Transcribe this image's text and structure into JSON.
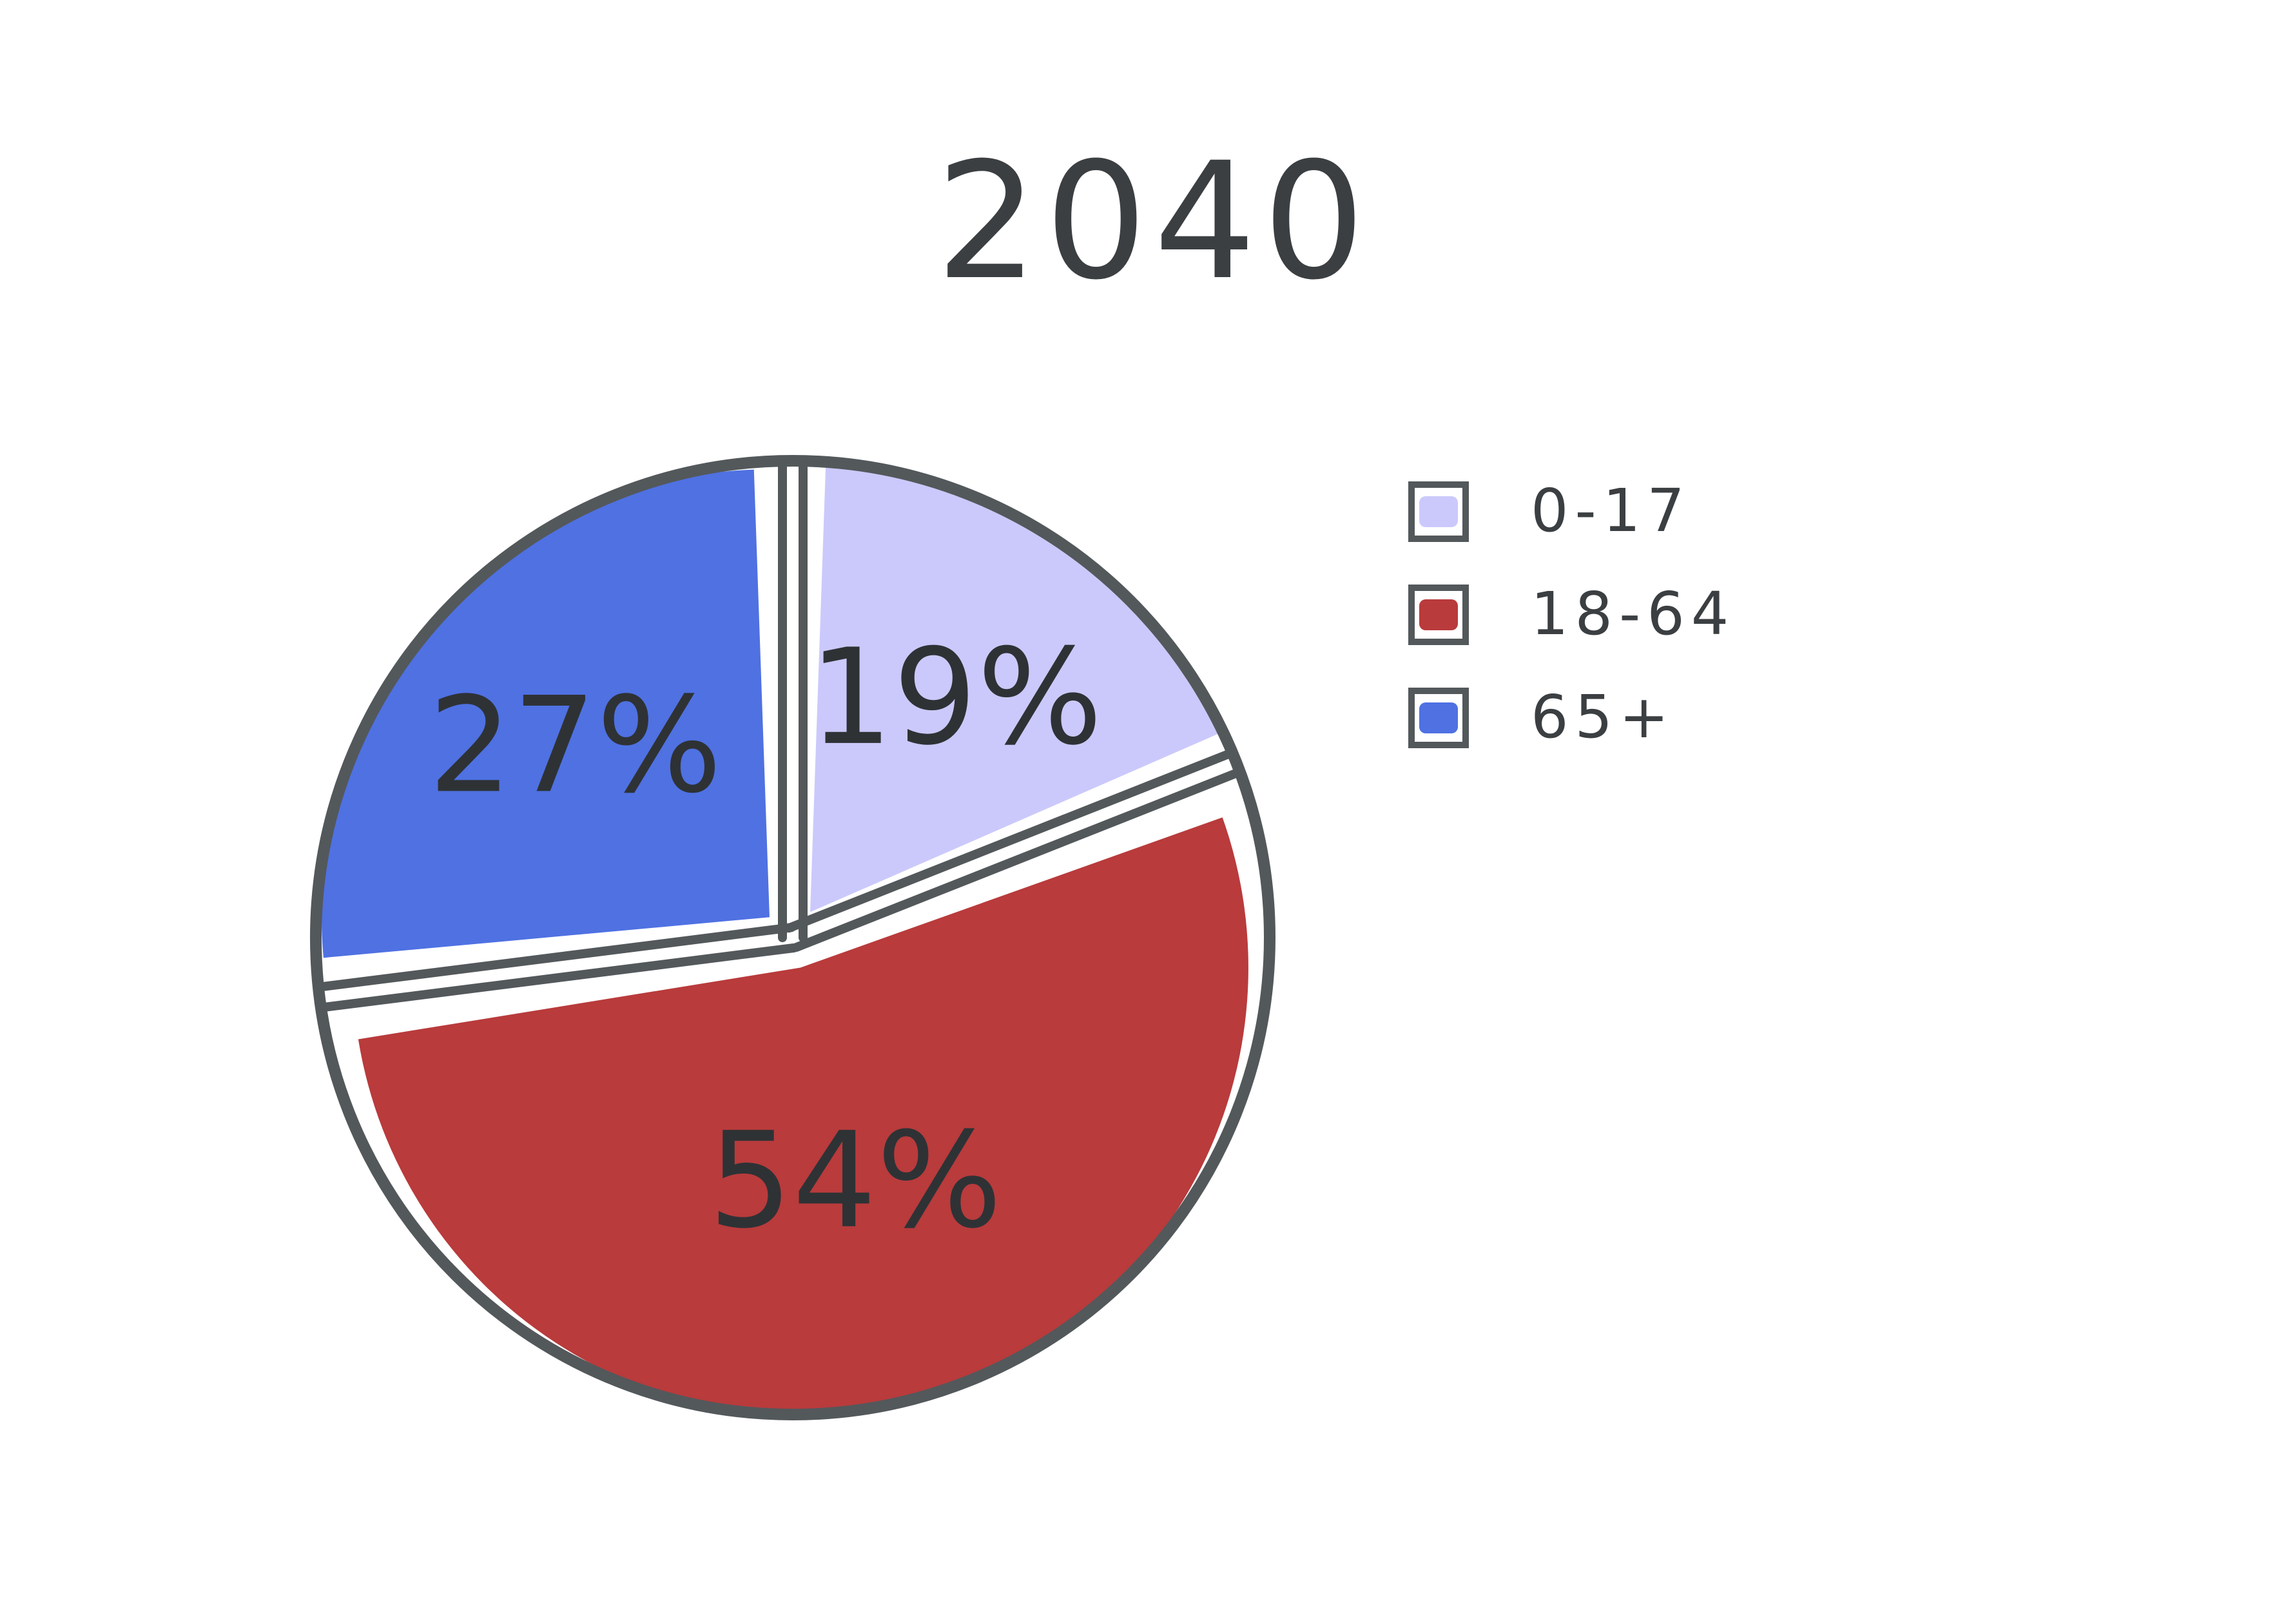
{
  "chart_data": {
    "type": "pie",
    "title": "2040",
    "categories": [
      "0-17",
      "18-64",
      "65+"
    ],
    "values": [
      19,
      54,
      27
    ],
    "labels": [
      "19%",
      "54%",
      "27%"
    ],
    "unit": "%",
    "legend_position": "top-right",
    "colors": {
      "0-17": "#cbc9fb",
      "18-64": "#b93b3c",
      "65+": "#4f71e2",
      "outline": "#53585b"
    }
  }
}
